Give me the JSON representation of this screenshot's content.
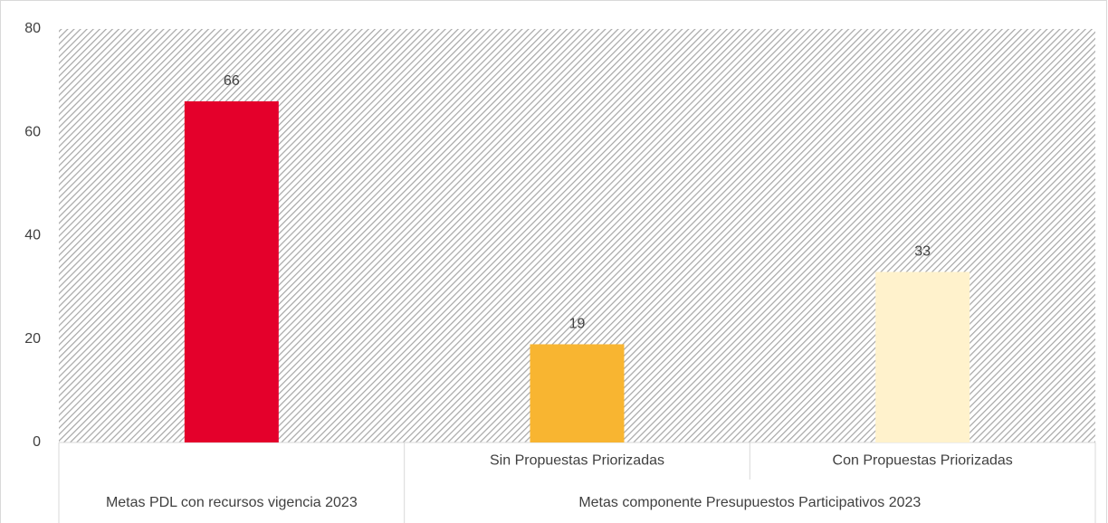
{
  "chart_data": {
    "type": "bar",
    "groups": [
      {
        "name": "Metas PDL con recursos vigencia 2023",
        "categories": [
          null
        ],
        "values": [
          66
        ],
        "colors": [
          "#e4002b"
        ]
      },
      {
        "name": "Metas componente Presupuestos Participativos 2023",
        "categories": [
          "Sin Propuestas Priorizadas",
          "Con Propuestas Priorizadas"
        ],
        "values": [
          19,
          33
        ],
        "colors": [
          "#f8b531",
          "#fff2cc"
        ]
      }
    ],
    "ylim": [
      0,
      80
    ],
    "yticks": [
      0,
      20,
      40,
      60,
      80
    ],
    "grid": false,
    "background": "hatched"
  }
}
